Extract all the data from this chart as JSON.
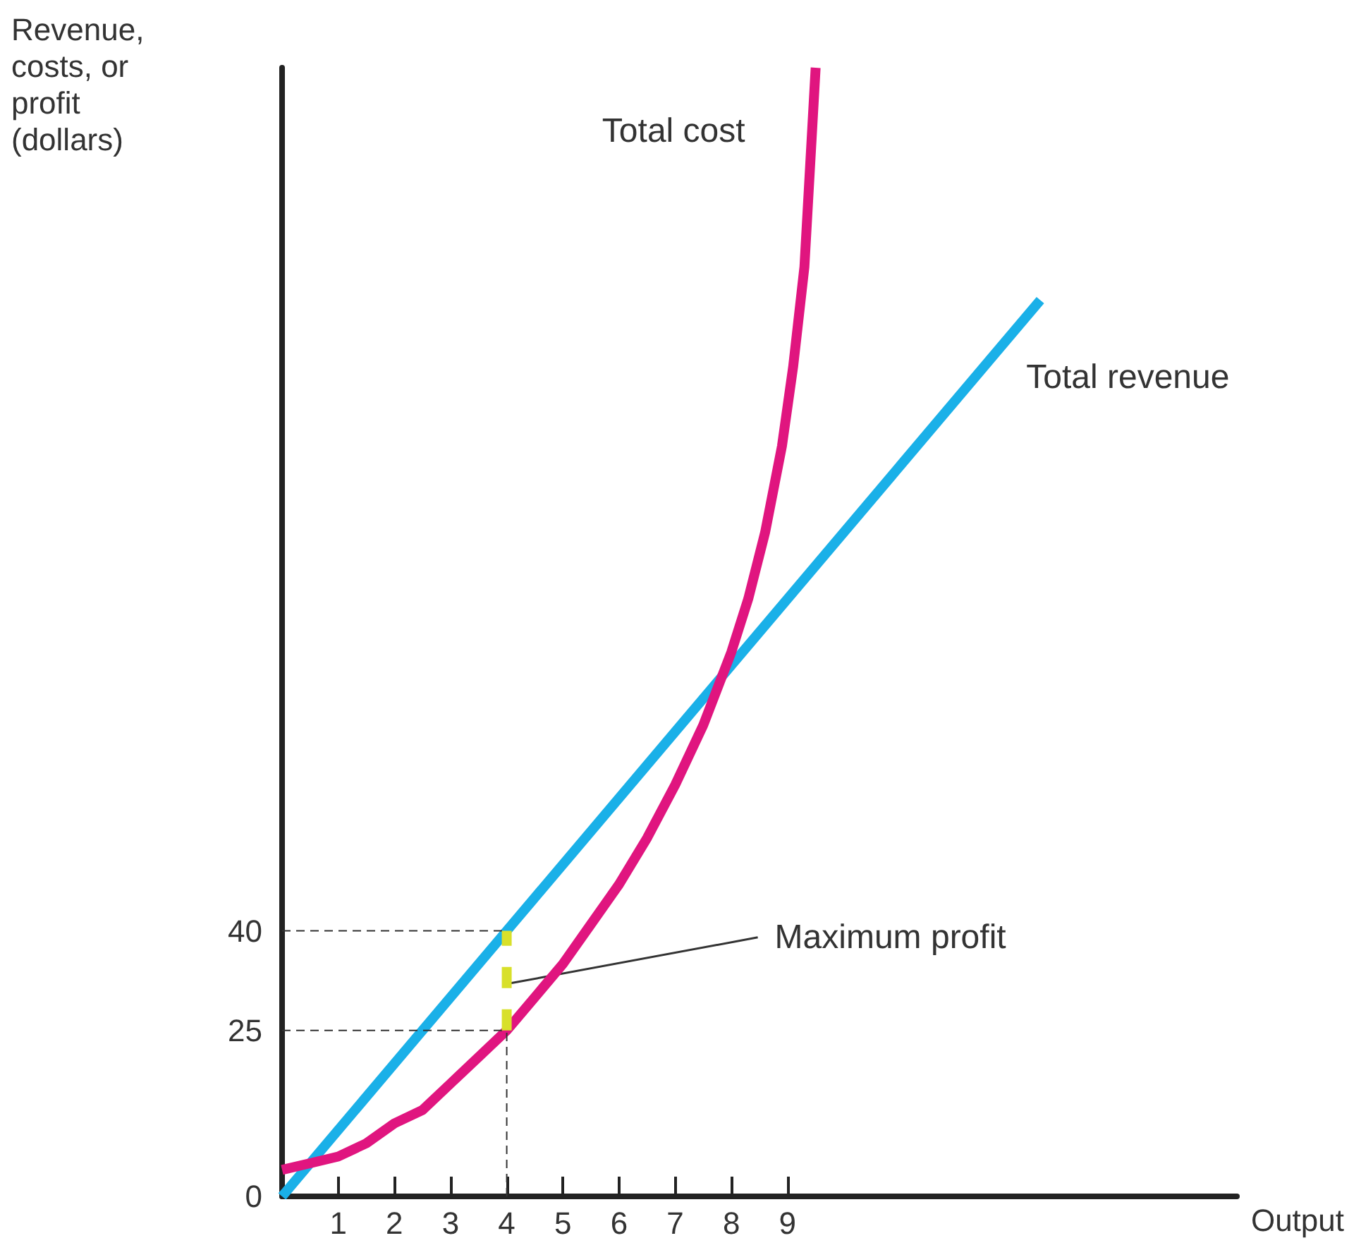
{
  "chart_data": {
    "type": "line",
    "ylabel": "Revenue,\ncosts, or\nprofit\n(dollars)",
    "xlabel": "Output",
    "xlim": [
      0,
      17
    ],
    "ylim": [
      0,
      170
    ],
    "xticks": [
      1,
      2,
      3,
      4,
      5,
      6,
      7,
      8,
      9
    ],
    "yticks": [
      0,
      25,
      40
    ],
    "grid": false,
    "legend": false,
    "marker": "none",
    "series": [
      {
        "name": "Total revenue",
        "color": "#1ab0e8",
        "x": [
          0,
          4,
          8,
          13.5
        ],
        "values": [
          0,
          40,
          80,
          135
        ]
      },
      {
        "name": "Total cost",
        "color": "#e0157f",
        "x": [
          0,
          0.5,
          1,
          1.5,
          2,
          2.5,
          3,
          3.5,
          4,
          4.5,
          5,
          5.5,
          6,
          6.5,
          7,
          7.5,
          8,
          8.3,
          8.6,
          8.9,
          9.1,
          9.3,
          9.4,
          9.5
        ],
        "values": [
          4,
          5,
          6,
          8,
          11,
          13,
          17,
          21,
          25,
          30,
          35,
          41,
          47,
          54,
          62,
          71,
          82,
          90,
          100,
          113,
          125,
          140,
          155,
          170
        ]
      },
      {
        "color": "#333333",
        "line_style": "dashed",
        "x": [
          0,
          4
        ],
        "values": [
          40,
          40
        ]
      },
      {
        "color": "#333333",
        "line_style": "dashed",
        "x": [
          0,
          4
        ],
        "values": [
          25,
          25
        ]
      },
      {
        "color": "#333333",
        "line_style": "dashed",
        "x": [
          4,
          4
        ],
        "values": [
          0,
          25
        ]
      },
      {
        "color": "#d8e02a",
        "line_style": "dashed",
        "x": [
          4,
          4
        ],
        "values": [
          25,
          40
        ]
      }
    ],
    "annotations": [
      {
        "text": "Maximum profit",
        "x": 4,
        "y": 32
      }
    ]
  }
}
